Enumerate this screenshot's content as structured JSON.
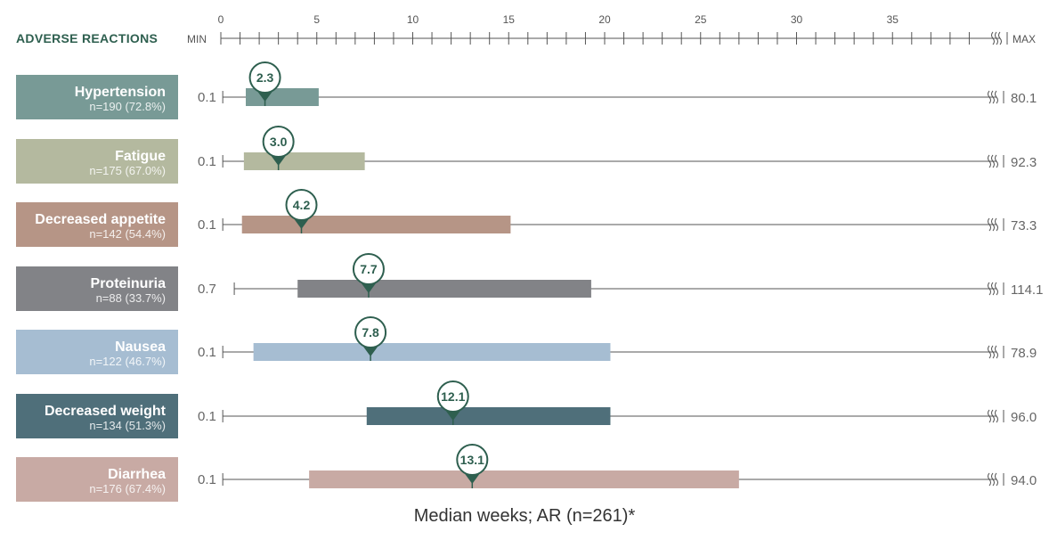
{
  "header": {
    "adverse_reactions": "ADVERSE REACTIONS",
    "min": "MIN",
    "max": "MAX",
    "ticks": [
      "0",
      "5",
      "10",
      "15",
      "20",
      "25",
      "30",
      "35"
    ]
  },
  "footer": {
    "caption": "Median weeks; AR (n=261)*"
  },
  "colors": {
    "accent": "#2e5f4f",
    "axis": "#555555",
    "hypertension": "#789a96",
    "fatigue": "#b4b99f",
    "decreased_appetite": "#b69586",
    "proteinuria": "#828387",
    "nausea": "#a6bdd2",
    "decreased_weight": "#4f6f7a",
    "diarrhea": "#c8aaa4"
  },
  "chart_data": {
    "type": "bar",
    "title": "",
    "xlabel": "Median weeks; AR (n=261)*",
    "xlim": [
      0,
      39
    ],
    "axis_break": true,
    "rows": [
      {
        "name": "Hypertension",
        "n": "n=190 (72.8%)",
        "min": "0.1",
        "max": "80.1",
        "min_value": 0.1,
        "q1": 1.3,
        "median": 2.3,
        "median_label": "2.3",
        "q3": 5.1,
        "color_key": "hypertension"
      },
      {
        "name": "Fatigue",
        "n": "n=175 (67.0%)",
        "min": "0.1",
        "max": "92.3",
        "min_value": 0.1,
        "q1": 1.2,
        "median": 3.0,
        "median_label": "3.0",
        "q3": 7.5,
        "color_key": "fatigue"
      },
      {
        "name": "Decreased appetite",
        "n": "n=142 (54.4%)",
        "min": "0.1",
        "max": "73.3",
        "min_value": 0.1,
        "q1": 1.1,
        "median": 4.2,
        "median_label": "4.2",
        "q3": 15.1,
        "color_key": "decreased_appetite"
      },
      {
        "name": "Proteinuria",
        "n": "n=88 (33.7%)",
        "min": "0.7",
        "max": "114.1",
        "min_value": 0.7,
        "q1": 4.0,
        "median": 7.7,
        "median_label": "7.7",
        "q3": 19.3,
        "color_key": "proteinuria"
      },
      {
        "name": "Nausea",
        "n": "n=122 (46.7%)",
        "min": "0.1",
        "max": "78.9",
        "min_value": 0.1,
        "q1": 1.7,
        "median": 7.8,
        "median_label": "7.8",
        "q3": 20.3,
        "color_key": "nausea"
      },
      {
        "name": "Decreased weight",
        "n": "n=134 (51.3%)",
        "min": "0.1",
        "max": "96.0",
        "min_value": 0.1,
        "q1": 7.6,
        "median": 12.1,
        "median_label": "12.1",
        "q3": 20.3,
        "color_key": "decreased_weight"
      },
      {
        "name": "Diarrhea",
        "n": "n=176 (67.4%)",
        "min": "0.1",
        "max": "94.0",
        "min_value": 0.1,
        "q1": 4.6,
        "median": 13.1,
        "median_label": "13.1",
        "q3": 27.0,
        "color_key": "diarrhea"
      }
    ]
  }
}
